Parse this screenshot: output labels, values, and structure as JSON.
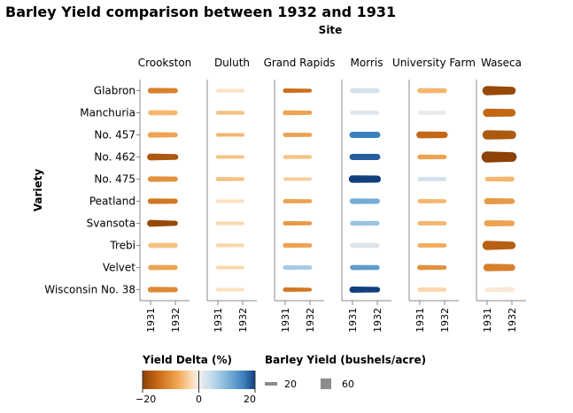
{
  "chart_data": {
    "type": "faceted-trail",
    "title": "Barley Yield comparison between 1932 and 1931",
    "column_axis_title": "Site",
    "row_axis_title": "Variety",
    "sites": [
      "Crookston",
      "Duluth",
      "Grand Rapids",
      "Morris",
      "University Farm",
      "Waseca"
    ],
    "varieties": [
      "Glabron",
      "Manchuria",
      "No. 457",
      "No. 462",
      "No. 475",
      "Peatland",
      "Svansota",
      "Trebi",
      "Velvet",
      "Wisconsin No. 38"
    ],
    "years": [
      "1931",
      "1932"
    ],
    "yield_1931": [
      [
        11,
        4,
        7,
        9,
        9,
        25
      ],
      [
        9,
        5,
        8,
        6,
        7,
        21
      ],
      [
        11,
        4,
        7,
        13,
        16,
        25
      ],
      [
        16,
        4,
        5,
        13,
        8,
        32
      ],
      [
        11,
        6,
        3,
        18,
        6,
        7
      ],
      [
        11,
        4,
        7,
        11,
        7,
        13
      ],
      [
        16,
        4,
        7,
        8,
        7,
        13
      ],
      [
        9,
        5,
        8,
        8,
        7,
        25
      ],
      [
        9,
        4,
        7,
        9,
        9,
        18
      ],
      [
        11,
        4,
        7,
        13,
        7,
        7
      ]
    ],
    "yield_1932": [
      [
        9,
        4,
        4,
        8,
        8,
        19
      ],
      [
        8,
        4,
        6,
        5,
        5,
        18
      ],
      [
        8,
        3,
        5,
        13,
        14,
        22
      ],
      [
        12,
        3,
        4,
        13,
        7,
        26
      ],
      [
        9,
        4,
        3,
        17,
        5,
        9
      ],
      [
        9,
        3,
        5,
        10,
        5,
        11
      ],
      [
        9,
        3,
        5,
        7,
        6,
        11
      ],
      [
        9,
        3,
        6,
        8,
        6,
        18
      ],
      [
        8,
        3,
        6,
        8,
        6,
        15
      ],
      [
        9,
        3,
        4,
        11,
        6,
        9
      ]
    ],
    "yield_delta_pct": [
      [
        -12,
        -2,
        -14,
        3,
        -6,
        -19
      ],
      [
        -6,
        -5,
        -8,
        2,
        1,
        -15
      ],
      [
        -8,
        -6,
        -8,
        16,
        -15,
        -17
      ],
      [
        -17,
        -5,
        -5,
        18,
        -8,
        -22
      ],
      [
        -10,
        -5,
        -4,
        24,
        3,
        -6
      ],
      [
        -13,
        -2,
        -8,
        11,
        -6,
        -9
      ],
      [
        -19,
        -3,
        -9,
        8,
        -6,
        -8
      ],
      [
        -5,
        -3,
        -8,
        2,
        -7,
        -16
      ],
      [
        -8,
        -3,
        7,
        13,
        -10,
        -12
      ],
      [
        -11,
        -2,
        -13,
        20,
        -3,
        -1
      ]
    ],
    "color_legend": {
      "title": "Yield Delta (%)",
      "domain": [
        -20,
        20
      ],
      "ticks": [
        "−20",
        "0",
        "20"
      ]
    },
    "size_legend": {
      "title": "Barley Yield (bushels/acre)",
      "entries": [
        {
          "value": 20,
          "label": "20"
        },
        {
          "value": 60,
          "label": "60"
        }
      ]
    }
  }
}
